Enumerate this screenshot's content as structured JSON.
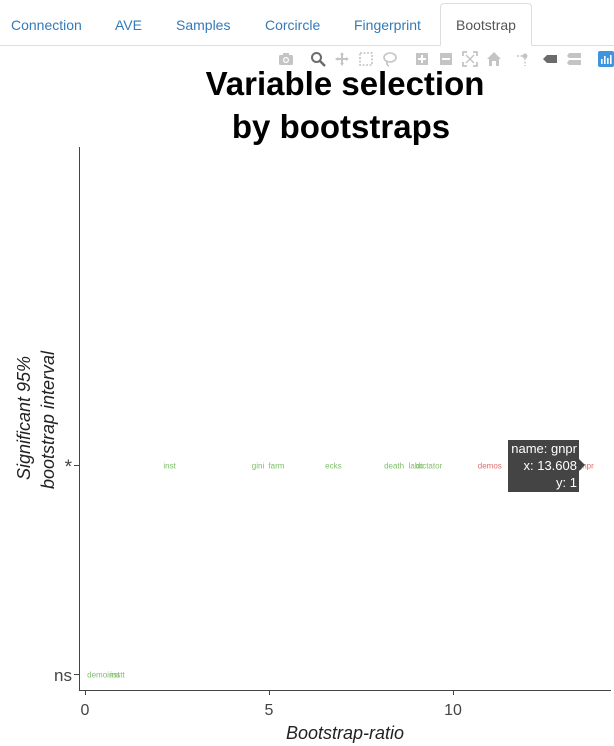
{
  "tabs": [
    {
      "label": "Connection"
    },
    {
      "label": "AVE"
    },
    {
      "label": "Samples"
    },
    {
      "label": "Corcircle"
    },
    {
      "label": "Fingerprint"
    },
    {
      "label": "Bootstrap",
      "active": true
    }
  ],
  "modebar": [
    "camera-icon",
    "zoom-icon",
    "pan-icon",
    "box-select-icon",
    "lasso-select-icon",
    "zoom-in-icon",
    "zoom-out-icon",
    "autoscale-icon",
    "reset-axes-icon",
    "spike-lines-icon",
    "hover-closest-icon",
    "hover-compare-icon",
    "plotly-logo-icon"
  ],
  "colors": {
    "green": "#7fbf6a",
    "red": "#e06c6c",
    "tooltip_bg": "#444444",
    "axis": "#444444",
    "tab_link": "#337ab7"
  },
  "chart_data": {
    "type": "scatter",
    "title_lines": [
      "Variable selection",
      "by  bootstraps"
    ],
    "xlabel": "Bootstrap-ratio",
    "ylabel_lines": [
      "Significant 95%",
      "bootstrap interval"
    ],
    "xlim": [
      -0.2,
      14.4
    ],
    "x_ticks": [
      0,
      5,
      10
    ],
    "y_ticks": [
      {
        "value": 0,
        "label": "ns"
      },
      {
        "value": 1,
        "label": "*"
      }
    ],
    "grid": false,
    "points": [
      {
        "label": "demoinst",
        "x": 0.5,
        "y": 0,
        "color": "green"
      },
      {
        "label": "instt",
        "x": 0.88,
        "y": 0,
        "color": "green"
      },
      {
        "label": "inst",
        "x": 2.3,
        "y": 1,
        "color": "green"
      },
      {
        "label": "gini",
        "x": 4.7,
        "y": 1,
        "color": "green"
      },
      {
        "label": "farm",
        "x": 5.2,
        "y": 1,
        "color": "green"
      },
      {
        "label": "ecks",
        "x": 6.75,
        "y": 1,
        "color": "green"
      },
      {
        "label": "death",
        "x": 8.4,
        "y": 1,
        "color": "green"
      },
      {
        "label": "labo",
        "x": 9.0,
        "y": 1,
        "color": "green"
      },
      {
        "label": "dictator",
        "x": 9.35,
        "y": 1,
        "color": "green"
      },
      {
        "label": "demos",
        "x": 11.0,
        "y": 1,
        "color": "red"
      },
      {
        "label": "gnpr",
        "x": 13.608,
        "y": 1,
        "color": "red"
      }
    ],
    "tooltip": {
      "lines": [
        "name: gnpr",
        "x: 13.608",
        "y: 1"
      ]
    }
  }
}
